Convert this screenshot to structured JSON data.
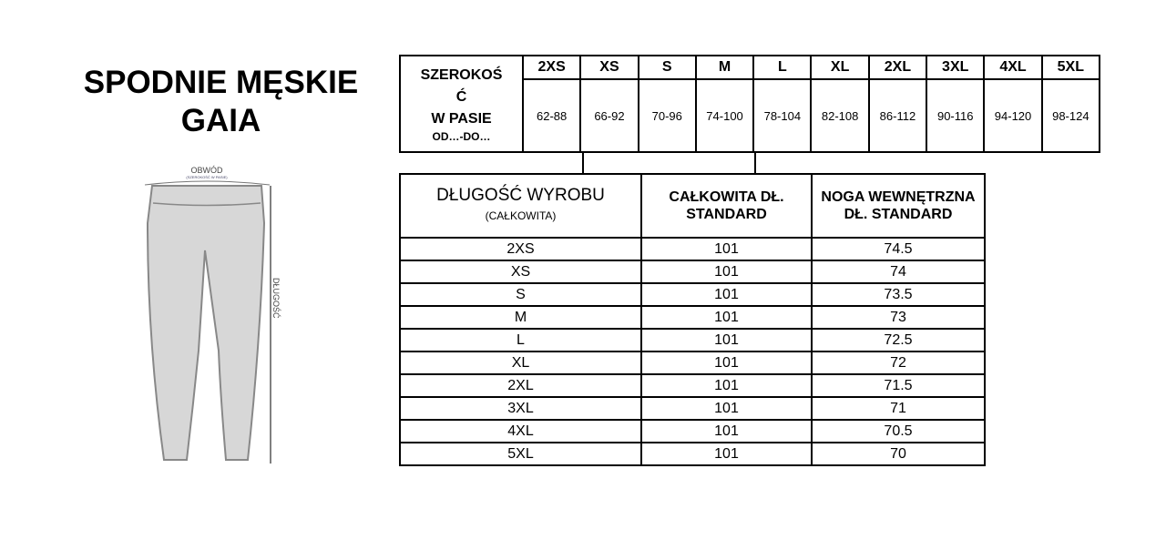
{
  "title": {
    "line1": "SPODNIE MĘSKIE",
    "line2": "GAIA"
  },
  "diagram": {
    "waist_label": "OBWÓD",
    "waist_sublabel": "(SZEROKOŚĆ W PASIE)",
    "length_label": "DŁUGOŚĆ"
  },
  "waist_table": {
    "label_line1": "SZEROKOŚ",
    "label_line2": "Ć",
    "label_line3": "W PASIE",
    "label_sub": "OD…-DO…",
    "sizes": [
      "2XS",
      "XS",
      "S",
      "M",
      "L",
      "XL",
      "2XL",
      "3XL",
      "4XL",
      "5XL"
    ],
    "values": [
      "62-88",
      "66-92",
      "70-96",
      "74-100",
      "78-104",
      "82-108",
      "86-112",
      "90-116",
      "94-120",
      "98-124"
    ]
  },
  "length_table": {
    "label": "DŁUGOŚĆ WYROBU",
    "label_sub": "(CAŁKOWITA)",
    "col1": "CAŁKOWITA DŁ. STANDARD",
    "col2": "NOGA WEWNĘTRZNA DŁ. STANDARD",
    "rows": [
      {
        "size": "2XS",
        "total": "101",
        "inner": "74.5"
      },
      {
        "size": "XS",
        "total": "101",
        "inner": "74"
      },
      {
        "size": "S",
        "total": "101",
        "inner": "73.5"
      },
      {
        "size": "M",
        "total": "101",
        "inner": "73"
      },
      {
        "size": "L",
        "total": "101",
        "inner": "72.5"
      },
      {
        "size": "XL",
        "total": "101",
        "inner": "72"
      },
      {
        "size": "2XL",
        "total": "101",
        "inner": "71.5"
      },
      {
        "size": "3XL",
        "total": "101",
        "inner": "71"
      },
      {
        "size": "4XL",
        "total": "101",
        "inner": "70.5"
      },
      {
        "size": "5XL",
        "total": "101",
        "inner": "70"
      }
    ]
  }
}
